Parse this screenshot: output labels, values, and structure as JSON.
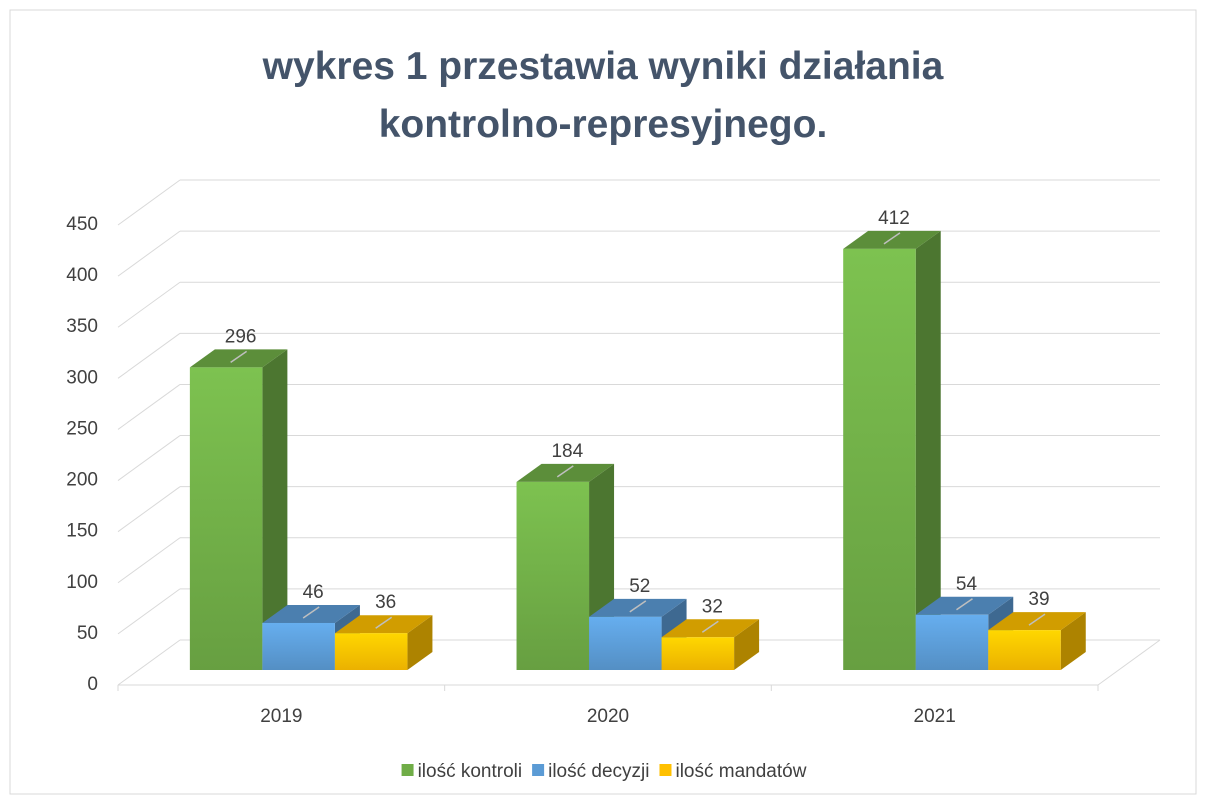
{
  "chart_data": {
    "type": "bar3d",
    "title": "wykres 1 przestawia wyniki działania kontrolno-represyjnego.",
    "categories": [
      "2019",
      "2020",
      "2021"
    ],
    "series": [
      {
        "name": "ilość kontroli",
        "color": "#70ad47",
        "values": [
          296,
          184,
          412
        ]
      },
      {
        "name": "ilość decyzji",
        "color": "#5b9bd5",
        "values": [
          46,
          52,
          54
        ]
      },
      {
        "name": "ilość mandatów",
        "color": "#ffc000",
        "values": [
          36,
          32,
          39
        ]
      }
    ],
    "ylim": [
      0,
      450
    ],
    "yticks": [
      0,
      50,
      100,
      150,
      200,
      250,
      300,
      350,
      400,
      450
    ],
    "grid": true,
    "legend": "bottom"
  }
}
